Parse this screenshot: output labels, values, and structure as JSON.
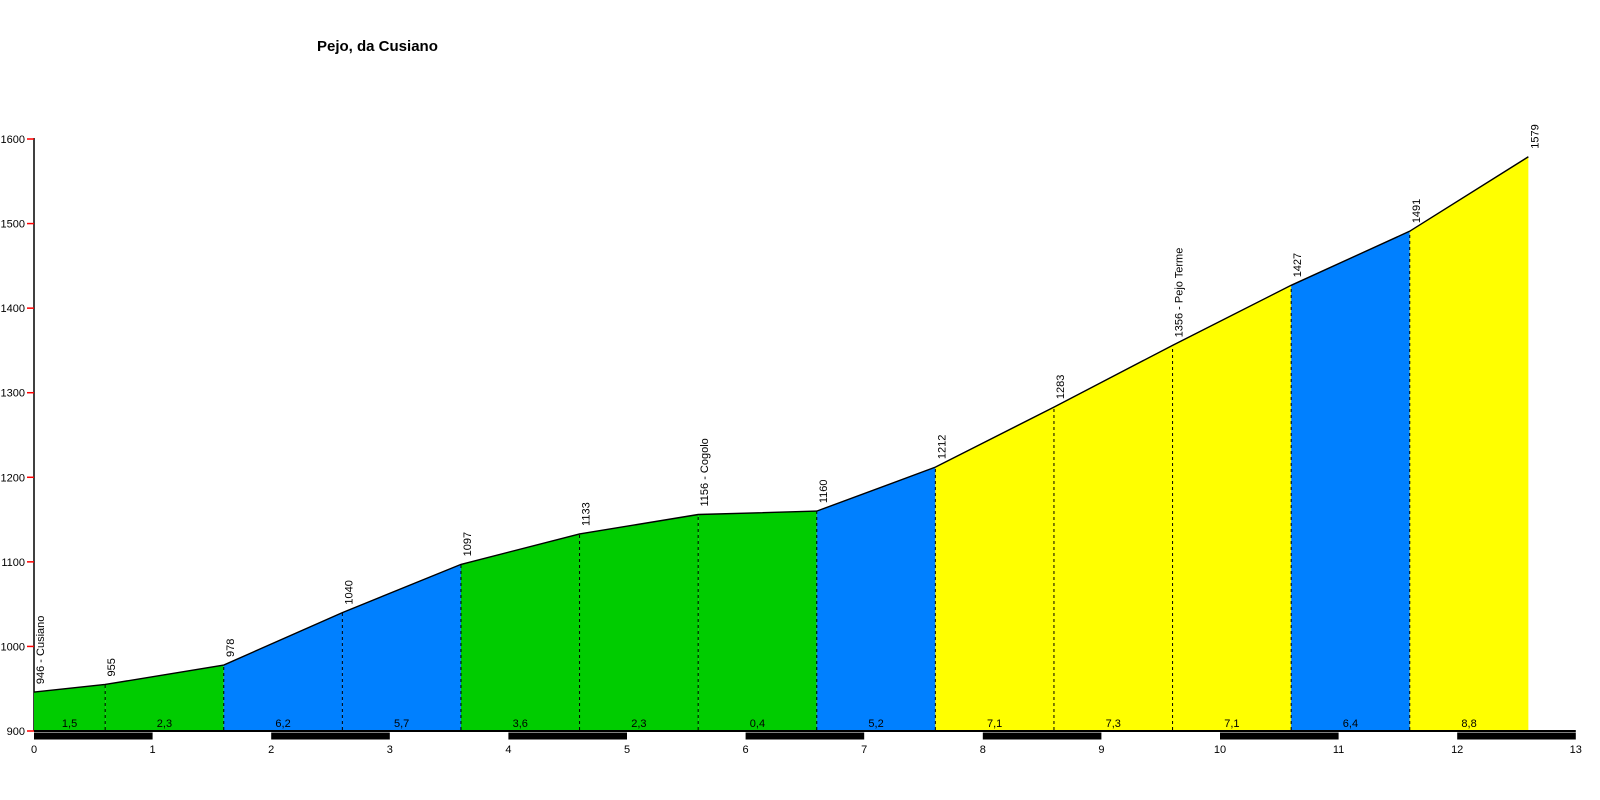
{
  "title": "Pejo, da Cusiano",
  "chart_data": {
    "type": "area",
    "title": "Pejo, da Cusiano",
    "x_unit": "km",
    "y_unit": "m",
    "x_axis": {
      "min": 0,
      "max": 13,
      "step": 1,
      "tick_labels": [
        "0",
        "1",
        "2",
        "3",
        "4",
        "5",
        "6",
        "7",
        "8",
        "9",
        "10",
        "11",
        "12",
        "13"
      ]
    },
    "y_axis": {
      "min": 900,
      "max": 1600,
      "step": 100,
      "tick_labels": [
        "900",
        "1000",
        "1100",
        "1200",
        "1300",
        "1400",
        "1500",
        "1600"
      ]
    },
    "points": [
      {
        "km": 0.0,
        "elev": 946,
        "label": "946 - Cusiano"
      },
      {
        "km": 0.6,
        "elev": 955,
        "label": "955"
      },
      {
        "km": 1.6,
        "elev": 978,
        "label": "978"
      },
      {
        "km": 2.6,
        "elev": 1040,
        "label": "1040"
      },
      {
        "km": 3.6,
        "elev": 1097,
        "label": "1097"
      },
      {
        "km": 4.6,
        "elev": 1133,
        "label": "1133"
      },
      {
        "km": 5.6,
        "elev": 1156,
        "label": "1156 - Cogolo"
      },
      {
        "km": 6.6,
        "elev": 1160,
        "label": "1160"
      },
      {
        "km": 7.6,
        "elev": 1212,
        "label": "1212"
      },
      {
        "km": 8.6,
        "elev": 1283,
        "label": "1283"
      },
      {
        "km": 9.6,
        "elev": 1356,
        "label": "1356 - Pejo Terme"
      },
      {
        "km": 10.6,
        "elev": 1427,
        "label": "1427"
      },
      {
        "km": 11.6,
        "elev": 1491,
        "label": "1491"
      },
      {
        "km": 12.6,
        "elev": 1579,
        "label": "1579"
      }
    ],
    "segments": [
      {
        "from_km": 0.0,
        "to_km": 0.6,
        "gradient_label": "1,5",
        "color": "green"
      },
      {
        "from_km": 0.6,
        "to_km": 1.6,
        "gradient_label": "2,3",
        "color": "green"
      },
      {
        "from_km": 1.6,
        "to_km": 2.6,
        "gradient_label": "6,2",
        "color": "blue"
      },
      {
        "from_km": 2.6,
        "to_km": 3.6,
        "gradient_label": "5,7",
        "color": "blue"
      },
      {
        "from_km": 3.6,
        "to_km": 4.6,
        "gradient_label": "3,6",
        "color": "green"
      },
      {
        "from_km": 4.6,
        "to_km": 5.6,
        "gradient_label": "2,3",
        "color": "green"
      },
      {
        "from_km": 5.6,
        "to_km": 6.6,
        "gradient_label": "0,4",
        "color": "green"
      },
      {
        "from_km": 6.6,
        "to_km": 7.6,
        "gradient_label": "5,2",
        "color": "blue"
      },
      {
        "from_km": 7.6,
        "to_km": 8.6,
        "gradient_label": "7,1",
        "color": "yellow"
      },
      {
        "from_km": 8.6,
        "to_km": 9.6,
        "gradient_label": "7,3",
        "color": "yellow"
      },
      {
        "from_km": 9.6,
        "to_km": 10.6,
        "gradient_label": "7,1",
        "color": "yellow"
      },
      {
        "from_km": 10.6,
        "to_km": 11.6,
        "gradient_label": "6,4",
        "color": "blue"
      },
      {
        "from_km": 11.6,
        "to_km": 12.6,
        "gradient_label": "8,8",
        "color": "yellow"
      }
    ],
    "colors": {
      "green": "#00cc00",
      "blue": "#0080ff",
      "yellow": "#ffff00",
      "axis": "#000000",
      "tick": "#ff0000",
      "text": "#000000",
      "band_dark": "#000000",
      "band_light": "#ffffff"
    },
    "band": {
      "dark_intervals": [
        [
          0,
          1
        ],
        [
          2,
          3
        ],
        [
          4,
          5
        ],
        [
          6,
          7
        ],
        [
          8,
          9
        ],
        [
          10,
          11
        ],
        [
          12,
          13
        ]
      ]
    },
    "legend": null,
    "grid": false
  }
}
